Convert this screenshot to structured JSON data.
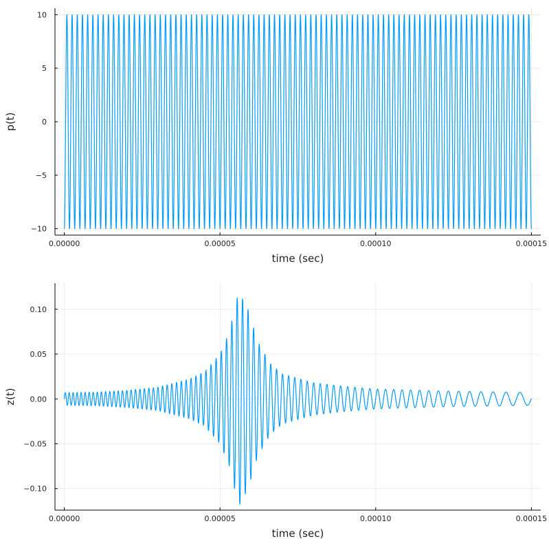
{
  "colors": {
    "series": "#009AFA",
    "axis": "#000000",
    "text": "#222222"
  },
  "chart_data": [
    {
      "type": "line",
      "title": "",
      "xlabel": "time (sec)",
      "ylabel": "p(t)",
      "xlim": [
        -3e-06,
        0.000153
      ],
      "ylim": [
        -10.6,
        10.6
      ],
      "xticks": [
        0,
        5e-05,
        0.0001,
        0.00015
      ],
      "xtick_labels": [
        "0.00000",
        "0.00005",
        "0.00010",
        "0.00015"
      ],
      "yticks": [
        -10,
        -5,
        0,
        5,
        10
      ],
      "ytick_labels": [
        "−10",
        "−5",
        "0",
        "5",
        "10"
      ],
      "grid": true,
      "legend": false,
      "series": [
        {
          "signal": "sinusoid",
          "amplitude": 10,
          "frequency_hz": 600000,
          "phase_rad": -1.5708,
          "t_start": 0,
          "t_end": 0.00015
        }
      ]
    },
    {
      "type": "line",
      "title": "",
      "xlabel": "time (sec)",
      "ylabel": "z(t)",
      "xlim": [
        -3e-06,
        0.000153
      ],
      "ylim": [
        -0.124,
        0.129
      ],
      "xticks": [
        0,
        5e-05,
        0.0001,
        0.00015
      ],
      "xtick_labels": [
        "0.00000",
        "0.00005",
        "0.00010",
        "0.00015"
      ],
      "yticks": [
        -0.1,
        -0.05,
        0,
        0.05,
        0.1
      ],
      "ytick_labels": [
        "−0.10",
        "−0.05",
        "0.00",
        "0.05",
        "0.10"
      ],
      "grid": true,
      "legend": false,
      "series": [
        {
          "signal": "chirp",
          "t_start": 0,
          "t_end": 0.00015,
          "instantaneous_frequency_hz": {
            "t": [
              0,
              0.00015
            ],
            "f": [
              800000,
              200000
            ]
          },
          "envelope": {
            "t": [
              0,
              1e-05,
              2e-05,
              3e-05,
              4e-05,
              4.5e-05,
              5e-05,
              5.3e-05,
              5.6e-05,
              5.9e-05,
              6.2e-05,
              6.6e-05,
              7e-05,
              8e-05,
              9e-05,
              0.0001,
              0.00012,
              0.00015
            ],
            "a": [
              0.007,
              0.0075,
              0.0095,
              0.013,
              0.022,
              0.03,
              0.05,
              0.075,
              0.12,
              0.1,
              0.065,
              0.04,
              0.028,
              0.018,
              0.014,
              0.011,
              0.009,
              0.007
            ]
          }
        }
      ]
    }
  ]
}
